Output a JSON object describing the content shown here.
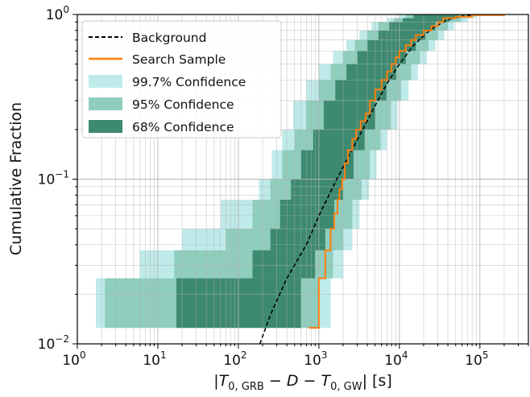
{
  "chart_data": {
    "type": "line",
    "x_scale": "log",
    "y_scale": "log",
    "xlim": [
      1,
      400000
    ],
    "ylim": [
      0.01,
      1
    ],
    "x_ticks": [
      {
        "value": 1,
        "base": "10",
        "exp": "0"
      },
      {
        "value": 10,
        "base": "10",
        "exp": "1"
      },
      {
        "value": 100,
        "base": "10",
        "exp": "2"
      },
      {
        "value": 1000,
        "base": "10",
        "exp": "3"
      },
      {
        "value": 10000,
        "base": "10",
        "exp": "4"
      },
      {
        "value": 100000,
        "base": "10",
        "exp": "5"
      }
    ],
    "y_ticks": [
      {
        "value": 0.01,
        "base": "10",
        "exp": "−2"
      },
      {
        "value": 0.1,
        "base": "10",
        "exp": "−1"
      },
      {
        "value": 1,
        "base": "10",
        "exp": "0"
      }
    ],
    "grid": true,
    "legend_position": "top-left",
    "ylabel": "Cumulative Fraction",
    "xlabel": "|T0, GRB − D − T0, GW| [s]",
    "xlabel_parts": {
      "bar": "|",
      "T": "T",
      "sub1": "0, GRB",
      "minus1": " − ",
      "D": "D",
      "minus2": " − ",
      "sub2": "0, GW",
      "unit": "| [s]"
    },
    "series": [
      {
        "name": "Background",
        "style": "dashed",
        "color": "#000000",
        "x": [
          185,
          250,
          400,
          700,
          1000,
          1500,
          2200,
          3500,
          5000,
          7000,
          10000,
          15000,
          25000,
          40000,
          60000,
          100000
        ],
        "y": [
          0.01,
          0.015,
          0.025,
          0.04,
          0.06,
          0.09,
          0.13,
          0.2,
          0.28,
          0.38,
          0.5,
          0.65,
          0.82,
          0.93,
          0.98,
          1.0
        ]
      },
      {
        "name": "Search Sample",
        "style": "step",
        "color": "#ff7f0e",
        "x": [
          750,
          950,
          1000,
          1200,
          1400,
          1550,
          1700,
          1800,
          1950,
          2100,
          2300,
          2600,
          2900,
          3300,
          3800,
          4300,
          5000,
          6000,
          7000,
          8000,
          9000,
          10000,
          12000,
          14000,
          16000,
          20000,
          25000,
          30000,
          35000,
          50000,
          80000,
          200000
        ],
        "y": [
          0.0125,
          0.0125,
          0.025,
          0.037,
          0.05,
          0.062,
          0.075,
          0.087,
          0.1,
          0.125,
          0.15,
          0.175,
          0.2,
          0.225,
          0.25,
          0.3,
          0.35,
          0.4,
          0.45,
          0.5,
          0.55,
          0.6,
          0.65,
          0.7,
          0.75,
          0.8,
          0.85,
          0.9,
          0.95,
          0.97,
          0.99,
          1.0
        ]
      },
      {
        "name": "99.7% Confidence",
        "style": "band",
        "color": "#bfeaea",
        "levels": [
          0.0125,
          0.025,
          0.037,
          0.05,
          0.075,
          0.1,
          0.15,
          0.2,
          0.3,
          0.4,
          0.5,
          0.6,
          0.7,
          0.8,
          0.9,
          0.95,
          1.0
        ],
        "lower": [
          1.7,
          6,
          20,
          60,
          180,
          260,
          350,
          480,
          700,
          1000,
          1500,
          2200,
          3200,
          4500,
          7000,
          10000,
          20000
        ],
        "upper": [
          1400,
          2000,
          2600,
          3200,
          4200,
          5200,
          7000,
          9500,
          13000,
          17000,
          22000,
          28000,
          36000,
          48000,
          70000,
          90000,
          180000
        ]
      },
      {
        "name": "95% Confidence",
        "style": "band",
        "color": "#8fcdbd",
        "levels": [
          0.0125,
          0.025,
          0.037,
          0.05,
          0.075,
          0.1,
          0.15,
          0.2,
          0.3,
          0.4,
          0.5,
          0.6,
          0.7,
          0.8,
          0.9,
          0.95,
          1.0
        ],
        "lower": [
          2.2,
          16,
          70,
          150,
          250,
          350,
          500,
          700,
          1000,
          1400,
          2000,
          2800,
          4000,
          5500,
          8500,
          12000,
          25000
        ],
        "upper": [
          1000,
          1500,
          2000,
          2600,
          3400,
          4300,
          5800,
          7800,
          10500,
          14000,
          18000,
          23000,
          30000,
          40000,
          58000,
          75000,
          150000
        ]
      },
      {
        "name": "68% Confidence",
        "style": "band",
        "color": "#3d8a70",
        "levels": [
          0.0125,
          0.025,
          0.037,
          0.05,
          0.075,
          0.1,
          0.15,
          0.2,
          0.3,
          0.4,
          0.5,
          0.6,
          0.7,
          0.8,
          0.9,
          0.95,
          1.0
        ],
        "lower": [
          17,
          150,
          250,
          330,
          450,
          600,
          850,
          1150,
          1600,
          2200,
          3000,
          4000,
          5500,
          7500,
          11000,
          15000,
          30000
        ],
        "upper": [
          600,
          900,
          1200,
          1550,
          2000,
          2700,
          3700,
          5000,
          6900,
          9200,
          12000,
          16000,
          21000,
          28000,
          42000,
          55000,
          120000
        ]
      }
    ]
  }
}
